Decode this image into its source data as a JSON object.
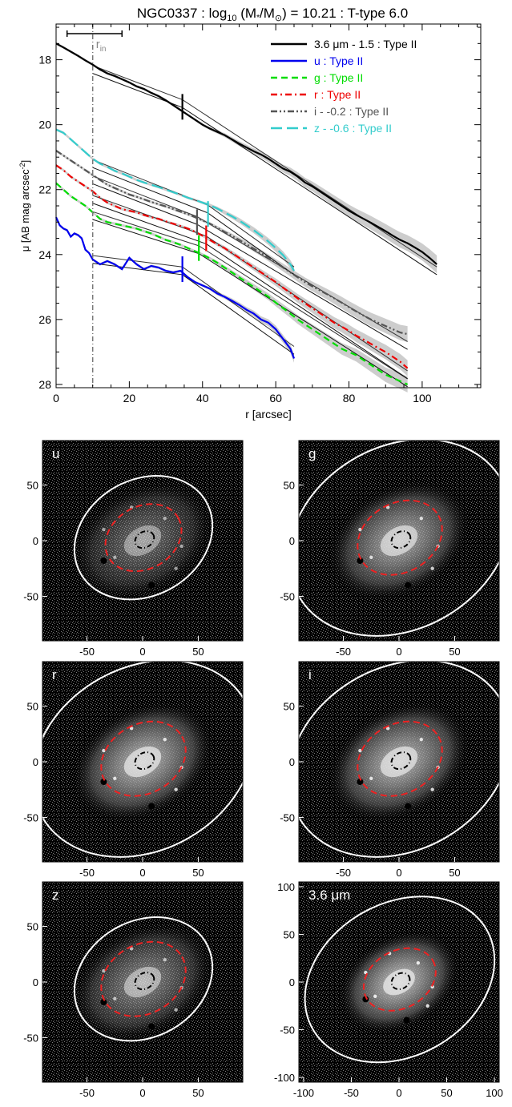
{
  "chart_data": [
    {
      "type": "line",
      "title": "NGC0337 : log",
      "title_sub": "10",
      "title_rest": " (M",
      "title_star": "*",
      "title_mid": "/M",
      "title_sun": "⊙",
      "title_end": ") = 10.21 : T-type 6.0",
      "xlabel": "r [arcsec]",
      "ylabel": "μ [AB mag arcsec",
      "ylabel_sup": "-2",
      "ylabel_end": "]",
      "xlim": [
        0,
        116
      ],
      "ylim": [
        28.1,
        16.9
      ],
      "y_inverted": true,
      "xticks": [
        0,
        20,
        40,
        60,
        80,
        100
      ],
      "yticks": [
        18,
        20,
        22,
        24,
        26,
        28
      ],
      "grid": false,
      "legend_position": "top-right",
      "r_in": {
        "label": "r",
        "label_sub": "in",
        "value": 10,
        "bar": [
          3,
          18
        ]
      },
      "series": [
        {
          "name": "3.6 μm - 1.5 : Type II",
          "color": "#000000",
          "dash": "solid",
          "x": [
            0,
            2,
            4,
            6,
            8,
            10,
            12,
            14,
            16,
            18,
            20,
            22,
            24,
            26,
            28,
            30,
            32,
            34,
            36,
            38,
            40,
            42,
            44,
            46,
            48,
            50,
            52,
            54,
            56,
            58,
            60,
            62,
            64,
            66,
            68,
            70,
            72,
            74,
            76,
            78,
            80,
            82,
            84,
            86,
            88,
            90,
            92,
            94,
            96,
            98,
            100,
            102,
            104
          ],
          "y": [
            17.5,
            17.62,
            17.75,
            17.88,
            18.02,
            18.15,
            18.3,
            18.42,
            18.5,
            18.6,
            18.7,
            18.82,
            18.9,
            19.02,
            19.12,
            19.25,
            19.4,
            19.55,
            19.7,
            19.85,
            20.0,
            20.12,
            20.22,
            20.32,
            20.45,
            20.58,
            20.7,
            20.82,
            20.92,
            21.05,
            21.2,
            21.35,
            21.45,
            21.6,
            21.78,
            21.9,
            22.05,
            22.2,
            22.35,
            22.5,
            22.65,
            22.78,
            22.9,
            23.02,
            23.15,
            23.28,
            23.42,
            23.55,
            23.65,
            23.78,
            23.92,
            24.1,
            24.3
          ]
        },
        {
          "name": "u : Type II",
          "color": "#0000ee",
          "dash": "solid",
          "x": [
            0,
            1,
            2,
            3,
            4,
            5,
            6,
            7,
            8,
            9,
            10,
            12,
            14,
            16,
            18,
            20,
            22,
            24,
            26,
            28,
            30,
            32,
            34,
            36,
            38,
            40,
            42,
            44,
            46,
            48,
            50,
            52,
            54,
            56,
            58,
            60,
            62,
            64,
            65
          ],
          "y": [
            22.85,
            23.1,
            23.2,
            23.25,
            23.45,
            23.35,
            23.4,
            23.5,
            23.85,
            23.95,
            24.15,
            24.3,
            24.2,
            24.3,
            24.45,
            24.1,
            24.3,
            24.45,
            24.35,
            24.4,
            24.5,
            24.55,
            24.5,
            24.7,
            24.85,
            24.95,
            25.05,
            25.2,
            25.3,
            25.42,
            25.55,
            25.7,
            25.82,
            26.0,
            26.1,
            26.3,
            26.6,
            26.9,
            27.2
          ]
        },
        {
          "name": "g : Type II",
          "color": "#00dd00",
          "dash": "dash",
          "x": [
            0,
            2,
            4,
            6,
            8,
            10,
            12,
            14,
            16,
            18,
            20,
            22,
            24,
            26,
            28,
            30,
            32,
            34,
            36,
            38,
            40,
            42,
            44,
            46,
            48,
            50,
            52,
            54,
            56,
            58,
            60,
            62,
            64,
            66,
            68,
            70,
            72,
            74,
            76,
            78,
            80,
            82,
            84,
            86,
            88,
            90,
            92,
            94,
            96
          ],
          "y": [
            21.8,
            22.0,
            22.2,
            22.35,
            22.5,
            22.7,
            22.9,
            23.0,
            23.05,
            23.1,
            23.15,
            23.2,
            23.28,
            23.35,
            23.45,
            23.55,
            23.62,
            23.7,
            23.8,
            23.9,
            24.0,
            24.12,
            24.25,
            24.4,
            24.55,
            24.7,
            24.85,
            25.0,
            25.15,
            25.3,
            25.48,
            25.65,
            25.82,
            26.0,
            26.15,
            26.3,
            26.45,
            26.6,
            26.75,
            26.9,
            27.0,
            27.1,
            27.25,
            27.4,
            27.55,
            27.7,
            27.8,
            27.9,
            28.0
          ]
        },
        {
          "name": "r : Type II",
          "color": "#ee0000",
          "dash": "dashdot",
          "x": [
            0,
            2,
            4,
            6,
            8,
            10,
            12,
            14,
            16,
            18,
            20,
            22,
            24,
            26,
            28,
            30,
            32,
            34,
            36,
            38,
            40,
            42,
            44,
            46,
            48,
            50,
            52,
            54,
            56,
            58,
            60,
            62,
            64,
            66,
            68,
            70,
            72,
            74,
            76,
            78,
            80,
            82,
            84,
            86,
            88,
            90,
            92,
            94,
            96
          ],
          "y": [
            21.25,
            21.4,
            21.6,
            21.75,
            21.9,
            22.05,
            22.25,
            22.4,
            22.5,
            22.6,
            22.65,
            22.7,
            22.78,
            22.85,
            22.9,
            22.98,
            23.05,
            23.12,
            23.2,
            23.3,
            23.42,
            23.55,
            23.68,
            23.8,
            23.95,
            24.1,
            24.25,
            24.4,
            24.55,
            24.7,
            24.85,
            25.02,
            25.18,
            25.35,
            25.5,
            25.65,
            25.8,
            25.95,
            26.1,
            26.22,
            26.35,
            26.5,
            26.62,
            26.75,
            26.88,
            27.0,
            27.15,
            27.3,
            27.5
          ]
        },
        {
          "name": "i - -0.2 : Type II",
          "color": "#555555",
          "dash": "dashdotdot",
          "x": [
            0,
            2,
            4,
            6,
            8,
            10,
            12,
            14,
            16,
            18,
            20,
            22,
            24,
            26,
            28,
            30,
            32,
            34,
            36,
            38,
            40,
            42,
            44,
            46,
            48,
            50,
            52,
            54,
            56,
            58,
            60,
            62,
            64,
            66,
            68,
            70,
            72,
            74,
            76,
            78,
            80,
            82,
            84,
            86,
            88,
            90,
            92,
            94,
            96
          ],
          "y": [
            20.8,
            20.95,
            21.1,
            21.25,
            21.4,
            21.55,
            21.7,
            21.85,
            21.95,
            22.05,
            22.15,
            22.22,
            22.3,
            22.38,
            22.45,
            22.52,
            22.6,
            22.68,
            22.76,
            22.85,
            22.95,
            23.05,
            23.17,
            23.3,
            23.42,
            23.55,
            23.68,
            23.82,
            23.95,
            24.1,
            24.25,
            24.4,
            24.55,
            24.7,
            24.85,
            24.98,
            25.1,
            25.22,
            25.35,
            25.48,
            25.62,
            25.75,
            25.88,
            26.0,
            26.1,
            26.2,
            26.3,
            26.4,
            26.45
          ]
        },
        {
          "name": "z - -0.6 : Type II",
          "color": "#33cccc",
          "dash": "longdash",
          "x": [
            0,
            2,
            4,
            6,
            8,
            10,
            12,
            14,
            16,
            18,
            20,
            22,
            24,
            26,
            28,
            30,
            32,
            34,
            36,
            38,
            40,
            42,
            44,
            46,
            48,
            50,
            52,
            54,
            56,
            58,
            60,
            62,
            64,
            65
          ],
          "y": [
            20.15,
            20.25,
            20.45,
            20.65,
            20.85,
            21.05,
            21.2,
            21.3,
            21.42,
            21.5,
            21.6,
            21.7,
            21.78,
            21.85,
            21.92,
            22.0,
            22.08,
            22.16,
            22.25,
            22.32,
            22.4,
            22.48,
            22.58,
            22.7,
            22.82,
            22.95,
            23.1,
            23.25,
            23.42,
            23.6,
            23.8,
            24.02,
            24.3,
            24.5
          ]
        }
      ],
      "breaks": [
        {
          "x": 34.5,
          "y": 19.45,
          "color": "#000000"
        },
        {
          "x": 34.5,
          "y": 24.45,
          "color": "#0000ee"
        },
        {
          "x": 39,
          "y": 23.8,
          "color": "#00dd00"
        },
        {
          "x": 41,
          "y": 23.5,
          "color": "#ee0000"
        },
        {
          "x": 38.5,
          "y": 23.0,
          "color": "#555555"
        },
        {
          "x": 41.5,
          "y": 22.75,
          "color": "#33cccc"
        }
      ],
      "fits": [
        {
          "x0": 10,
          "y0": 18.3,
          "x1": 34.5,
          "y1": 19.35,
          "x2": 104,
          "y2": 24.5
        },
        {
          "x0": 10,
          "y0": 24.15,
          "x1": 34.5,
          "y1": 24.5,
          "x2": 65,
          "y2": 26.95
        },
        {
          "x0": 10,
          "y0": 22.8,
          "x1": 39,
          "y1": 23.85,
          "x2": 96,
          "y2": 27.95
        },
        {
          "x0": 10,
          "y0": 22.3,
          "x1": 41,
          "y1": 23.55,
          "x2": 96,
          "y2": 27.7
        },
        {
          "x0": 10,
          "y0": 21.7,
          "x1": 38.5,
          "y1": 22.95,
          "x2": 96,
          "y2": 26.8
        },
        {
          "x0": 10,
          "y0": 21.2,
          "x1": 41.5,
          "y1": 22.6,
          "x2": 65,
          "y2": 24.5
        }
      ]
    },
    {
      "type": "image_grid",
      "panels": [
        {
          "label": "u",
          "extent": 90,
          "xticks": [
            -50,
            0,
            50
          ],
          "yticks": [
            50,
            0,
            -50
          ],
          "outer_ellipse": [
            65,
            52
          ],
          "inner_ellipse": [
            36,
            28
          ],
          "core_ellipse": [
            9,
            7
          ],
          "brightness": 0.45
        },
        {
          "label": "g",
          "extent": 90,
          "xticks": [
            -50,
            0,
            50
          ],
          "yticks": [
            50,
            0,
            -50
          ],
          "outer_ellipse": [
            105,
            82
          ],
          "inner_ellipse": [
            40,
            31
          ],
          "core_ellipse": [
            9,
            7
          ],
          "brightness": 0.7
        },
        {
          "label": "r",
          "extent": 90,
          "xticks": [
            -50,
            0,
            50
          ],
          "yticks": [
            50,
            0,
            -50
          ],
          "outer_ellipse": [
            105,
            82
          ],
          "inner_ellipse": [
            40,
            31
          ],
          "core_ellipse": [
            9,
            7
          ],
          "brightness": 0.75
        },
        {
          "label": "i",
          "extent": 90,
          "xticks": [
            -50,
            0,
            50
          ],
          "yticks": [
            50,
            0,
            -50
          ],
          "outer_ellipse": [
            105,
            82
          ],
          "inner_ellipse": [
            40,
            31
          ],
          "core_ellipse": [
            9,
            7
          ],
          "brightness": 0.75
        },
        {
          "label": "z",
          "extent": 90,
          "xticks": [
            -50,
            0,
            50
          ],
          "yticks": [
            50,
            0,
            -50
          ],
          "outer_ellipse": [
            65,
            52
          ],
          "inner_ellipse": [
            40,
            31
          ],
          "core_ellipse": [
            9,
            7
          ],
          "brightness": 0.55
        },
        {
          "label": "3.6 μm",
          "extent": 105,
          "xticks": [
            -100,
            -50,
            0,
            50,
            100
          ],
          "yticks": [
            100,
            50,
            0,
            -50,
            -100
          ],
          "outer_ellipse": [
            105,
            80
          ],
          "inner_ellipse": [
            40,
            30
          ],
          "core_ellipse": [
            10,
            8
          ],
          "brightness": 0.8
        }
      ]
    }
  ]
}
